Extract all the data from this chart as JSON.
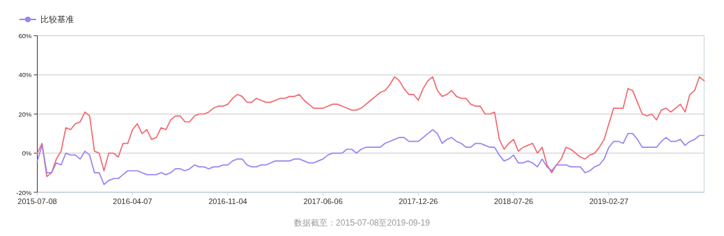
{
  "chart_data": {
    "type": "line",
    "categories": [
      "2015-07-08",
      null,
      null,
      null,
      null,
      null,
      null,
      null,
      null,
      null,
      null,
      null,
      null,
      null,
      null,
      null,
      null,
      null,
      null,
      null,
      "2016-04-07",
      null,
      null,
      null,
      null,
      null,
      null,
      null,
      null,
      null,
      null,
      null,
      null,
      null,
      null,
      null,
      null,
      null,
      null,
      null,
      "2016-11-04",
      null,
      null,
      null,
      null,
      null,
      null,
      null,
      null,
      null,
      null,
      null,
      null,
      null,
      null,
      null,
      null,
      null,
      null,
      null,
      "2017-06-06",
      null,
      null,
      null,
      null,
      null,
      null,
      null,
      null,
      null,
      null,
      null,
      null,
      null,
      null,
      null,
      null,
      null,
      null,
      null,
      "2017-12-26",
      null,
      null,
      null,
      null,
      null,
      null,
      null,
      null,
      null,
      null,
      null,
      null,
      null,
      null,
      null,
      null,
      null,
      null,
      null,
      "2018-07-26",
      null,
      null,
      null,
      null,
      null,
      null,
      null,
      null,
      null,
      null,
      null,
      null,
      null,
      null,
      null,
      null,
      null,
      null,
      null,
      "2019-02-27",
      null,
      null,
      null,
      null,
      null,
      null,
      null,
      null,
      null,
      null,
      null,
      null,
      null,
      null,
      null,
      null,
      null,
      null,
      null,
      null
    ],
    "series": [
      {
        "color": "#f2686f",
        "values": [
          0,
          5,
          -12,
          -10,
          -3,
          1,
          13,
          12,
          15,
          16,
          21,
          19,
          1,
          0,
          -9,
          0,
          0,
          -2,
          5,
          5,
          12,
          15,
          10,
          12,
          7,
          8,
          13,
          12,
          17,
          19,
          19,
          16,
          16,
          19,
          20,
          20,
          21,
          23,
          24,
          24,
          25,
          28,
          30,
          29,
          26,
          26,
          28,
          27,
          26,
          26,
          27,
          28,
          28,
          29,
          29,
          30,
          27,
          25,
          23,
          23,
          23,
          24,
          25,
          25,
          24,
          23,
          22,
          22,
          23,
          25,
          27,
          29,
          31,
          32,
          35,
          39,
          37,
          33,
          30,
          30,
          27,
          33,
          37,
          39,
          32,
          29,
          30,
          32,
          29,
          28,
          28,
          25,
          24,
          24,
          20,
          20,
          21,
          7,
          2,
          5,
          7,
          1,
          3,
          4,
          5,
          0,
          3,
          -6,
          -10,
          -6,
          -3,
          3,
          2,
          0,
          -2,
          -3,
          -1,
          0,
          3,
          7,
          15,
          23,
          23,
          23,
          33,
          32,
          26,
          20,
          19,
          20,
          17,
          22,
          23,
          21,
          23,
          25,
          21,
          30,
          32,
          39,
          37
        ]
      },
      {
        "name": "比较基准",
        "color": "#9b82f2",
        "values": [
          -4,
          4,
          -10,
          -10,
          -5,
          -6,
          0,
          -1,
          -1,
          -3,
          1,
          -1,
          -10,
          -10,
          -16,
          -14,
          -13,
          -13,
          -11,
          -9,
          -9,
          -9,
          -10,
          -11,
          -11,
          -11,
          -10,
          -11,
          -10,
          -8,
          -8,
          -9,
          -8,
          -6,
          -7,
          -7,
          -8,
          -7,
          -7,
          -6,
          -6,
          -4,
          -3,
          -3,
          -6,
          -7,
          -7,
          -6,
          -6,
          -5,
          -4,
          -4,
          -4,
          -4,
          -3,
          -3,
          -4,
          -5,
          -5,
          -4,
          -3,
          -1,
          0,
          0,
          0,
          2,
          2,
          0,
          2,
          3,
          3,
          3,
          3,
          5,
          6,
          7,
          8,
          8,
          6,
          6,
          6,
          8,
          10,
          12,
          10,
          5,
          7,
          8,
          6,
          5,
          3,
          3,
          5,
          5,
          4,
          3,
          3,
          -1,
          -4,
          -3,
          -1,
          -5,
          -5,
          -4,
          -5,
          -7,
          -3,
          -7,
          -9,
          -6,
          -6,
          -6,
          -7,
          -7,
          -7,
          -10,
          -9,
          -7,
          -6,
          -3,
          3,
          6,
          6,
          5,
          10,
          10,
          7,
          3,
          3,
          3,
          3,
          6,
          8,
          6,
          6,
          7,
          4,
          6,
          7,
          9,
          9
        ]
      }
    ],
    "ylim": [
      -20,
      60
    ],
    "yticks": [
      {
        "value": -20,
        "label": "-20%"
      },
      {
        "value": 0,
        "label": "0%"
      },
      {
        "value": 20,
        "label": "20%"
      },
      {
        "value": 40,
        "label": "40%"
      },
      {
        "value": 60,
        "label": "60%"
      }
    ],
    "grid": "y",
    "legend": "top left",
    "annotations": [
      "数据截至：2015-07-08至2019-09-19"
    ]
  }
}
